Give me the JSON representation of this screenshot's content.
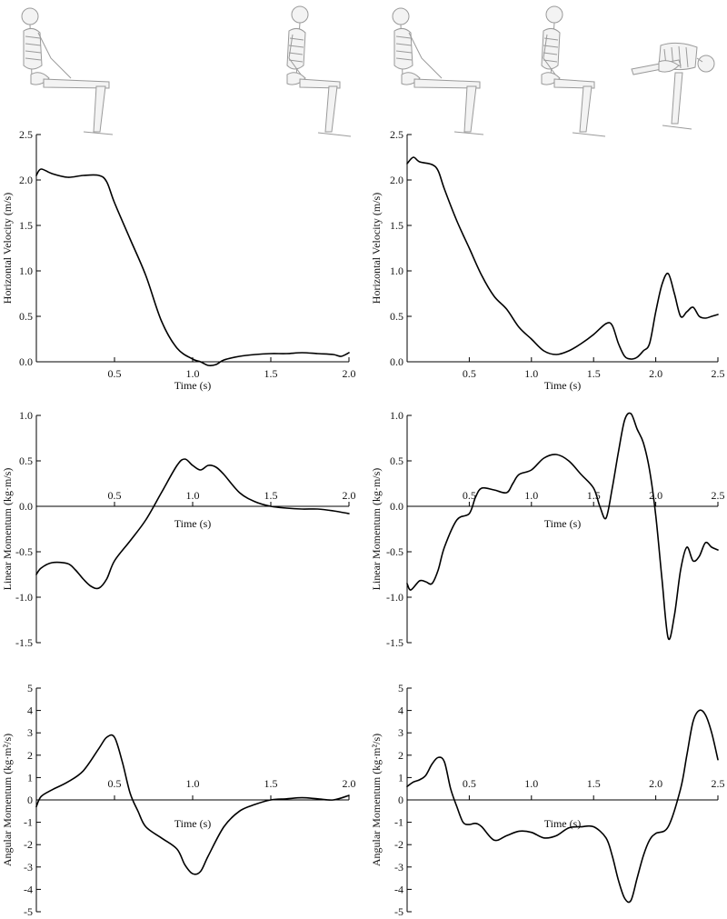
{
  "figure": {
    "skeleton_icons": [
      "skeleton-sitting-icon",
      "skeleton-sitting-icon",
      "skeleton-sitting-icon",
      "skeleton-sitting-icon",
      "skeleton-falling-icon"
    ]
  },
  "chart_data": [
    {
      "type": "line",
      "panel": "left-top",
      "title": "",
      "xlabel": "Time (s)",
      "ylabel": "Horizontal Velocity (m/s)",
      "xlim": [
        0,
        2.0
      ],
      "ylim": [
        0,
        2.5
      ],
      "xticks": [
        0.5,
        1.0,
        1.5,
        2.0
      ],
      "xtick_labels": [
        "0.5",
        "1.0",
        "1.5",
        "2.0"
      ],
      "yticks": [
        0,
        0.5,
        1.0,
        1.5,
        2.0,
        2.5
      ],
      "ytick_labels": [
        "0.0",
        "0.5",
        "1.0",
        "1.5",
        "2.0",
        "2.5"
      ],
      "grid": false,
      "series": [
        {
          "x": [
            0,
            0.03,
            0.1,
            0.2,
            0.3,
            0.4,
            0.45,
            0.5,
            0.6,
            0.7,
            0.8,
            0.9,
            1.0,
            1.05,
            1.1,
            1.15,
            1.2,
            1.3,
            1.4,
            1.5,
            1.6,
            1.7,
            1.8,
            1.9,
            1.95,
            2.0
          ],
          "y": [
            2.05,
            2.12,
            2.07,
            2.03,
            2.05,
            2.05,
            1.98,
            1.75,
            1.35,
            0.95,
            0.45,
            0.15,
            0.03,
            0.0,
            -0.04,
            -0.03,
            0.02,
            0.06,
            0.08,
            0.09,
            0.09,
            0.1,
            0.09,
            0.08,
            0.06,
            0.1
          ]
        }
      ]
    },
    {
      "type": "line",
      "panel": "right-top",
      "title": "",
      "xlabel": "Time (s)",
      "ylabel": "Horizontal Velocity (m/s)",
      "xlim": [
        0,
        2.5
      ],
      "ylim": [
        0,
        2.5
      ],
      "xticks": [
        0.5,
        1.0,
        1.5,
        2.0,
        2.5
      ],
      "xtick_labels": [
        "0.5",
        "1.0",
        "1.5",
        "2.0",
        "2.5"
      ],
      "yticks": [
        0,
        0.5,
        1.0,
        1.5,
        2.0,
        2.5
      ],
      "ytick_labels": [
        "0.0",
        "0.5",
        "1.0",
        "1.5",
        "2.0",
        "2.5"
      ],
      "grid": false,
      "series": [
        {
          "x": [
            0,
            0.05,
            0.1,
            0.2,
            0.25,
            0.3,
            0.4,
            0.5,
            0.6,
            0.7,
            0.8,
            0.9,
            1.0,
            1.1,
            1.2,
            1.3,
            1.4,
            1.5,
            1.6,
            1.65,
            1.7,
            1.75,
            1.8,
            1.85,
            1.9,
            1.95,
            2.0,
            2.05,
            2.1,
            2.15,
            2.2,
            2.25,
            2.3,
            2.35,
            2.4,
            2.45,
            2.5
          ],
          "y": [
            2.18,
            2.25,
            2.2,
            2.17,
            2.1,
            1.9,
            1.55,
            1.25,
            0.95,
            0.72,
            0.58,
            0.38,
            0.25,
            0.12,
            0.08,
            0.12,
            0.2,
            0.3,
            0.42,
            0.4,
            0.2,
            0.06,
            0.03,
            0.05,
            0.12,
            0.2,
            0.55,
            0.85,
            0.97,
            0.75,
            0.5,
            0.55,
            0.6,
            0.5,
            0.48,
            0.5,
            0.52
          ]
        }
      ]
    },
    {
      "type": "line",
      "panel": "left-middle",
      "title": "",
      "xlabel": "Time (s)",
      "ylabel": "Linear Momentum (kg·m/s)",
      "xlim": [
        0,
        2.0
      ],
      "ylim": [
        -1.5,
        1.0
      ],
      "xticks": [
        0.5,
        1.0,
        1.5,
        2.0
      ],
      "xtick_labels": [
        "0.5",
        "1.0",
        "1.5",
        "2.0"
      ],
      "yticks": [
        -1.5,
        -1.0,
        -0.5,
        0,
        0.5,
        1.0
      ],
      "ytick_labels": [
        "-1.5",
        "-1.0",
        "-0.5",
        "0.0",
        "0.5",
        "1.0"
      ],
      "grid": false,
      "series": [
        {
          "x": [
            0,
            0.03,
            0.1,
            0.2,
            0.25,
            0.3,
            0.35,
            0.4,
            0.45,
            0.5,
            0.6,
            0.7,
            0.8,
            0.9,
            0.95,
            1.0,
            1.05,
            1.1,
            1.15,
            1.2,
            1.3,
            1.4,
            1.5,
            1.6,
            1.7,
            1.8,
            1.9,
            2.0
          ],
          "y": [
            -0.75,
            -0.68,
            -0.62,
            -0.63,
            -0.7,
            -0.8,
            -0.88,
            -0.9,
            -0.8,
            -0.6,
            -0.38,
            -0.15,
            0.15,
            0.45,
            0.52,
            0.45,
            0.4,
            0.45,
            0.43,
            0.35,
            0.15,
            0.05,
            0.0,
            -0.02,
            -0.03,
            -0.03,
            -0.05,
            -0.08
          ]
        }
      ]
    },
    {
      "type": "line",
      "panel": "right-middle",
      "title": "",
      "xlabel": "Time (s)",
      "ylabel": "Linear Momentum (kg·m/s)",
      "xlim": [
        0,
        2.5
      ],
      "ylim": [
        -1.5,
        1.0
      ],
      "xticks": [
        0.5,
        1.0,
        1.5,
        2.0,
        2.5
      ],
      "xtick_labels": [
        "0.5",
        "1.0",
        "1.5",
        "2.0",
        "2.5"
      ],
      "yticks": [
        -1.5,
        -1.0,
        -0.5,
        0,
        0.5,
        1.0
      ],
      "ytick_labels": [
        "-1.5",
        "-1.0",
        "-0.5",
        "0.0",
        "0.5",
        "1.0"
      ],
      "grid": false,
      "series": [
        {
          "x": [
            0,
            0.03,
            0.1,
            0.15,
            0.2,
            0.25,
            0.3,
            0.4,
            0.5,
            0.55,
            0.6,
            0.7,
            0.8,
            0.85,
            0.9,
            1.0,
            1.1,
            1.2,
            1.3,
            1.4,
            1.5,
            1.55,
            1.6,
            1.65,
            1.7,
            1.75,
            1.8,
            1.85,
            1.9,
            1.95,
            2.0,
            2.05,
            2.1,
            2.15,
            2.2,
            2.25,
            2.3,
            2.35,
            2.4,
            2.45,
            2.5
          ],
          "y": [
            -0.85,
            -0.92,
            -0.82,
            -0.83,
            -0.85,
            -0.7,
            -0.45,
            -0.15,
            -0.08,
            0.1,
            0.2,
            0.18,
            0.15,
            0.25,
            0.35,
            0.4,
            0.53,
            0.57,
            0.5,
            0.35,
            0.2,
            0.0,
            -0.13,
            0.2,
            0.6,
            0.95,
            1.02,
            0.85,
            0.7,
            0.4,
            -0.1,
            -0.8,
            -1.45,
            -1.2,
            -0.7,
            -0.45,
            -0.6,
            -0.55,
            -0.4,
            -0.45,
            -0.48
          ]
        }
      ]
    },
    {
      "type": "line",
      "panel": "left-bottom",
      "title": "",
      "xlabel": "Time (s)",
      "ylabel": "Angular Momentum (kg·m²/s)",
      "xlim": [
        0,
        2.0
      ],
      "ylim": [
        -5,
        5
      ],
      "xticks": [
        0.5,
        1.0,
        1.5,
        2.0
      ],
      "xtick_labels": [
        "0.5",
        "1.0",
        "1.5",
        "2.0"
      ],
      "yticks": [
        -5,
        -4,
        -3,
        -2,
        -1,
        0,
        1,
        2,
        3,
        4,
        5
      ],
      "ytick_labels": [
        "-5",
        "-4",
        "-3",
        "-2",
        "-1",
        "0",
        "1",
        "2",
        "3",
        "4",
        "5"
      ],
      "grid": false,
      "series": [
        {
          "x": [
            0,
            0.03,
            0.1,
            0.2,
            0.3,
            0.4,
            0.45,
            0.5,
            0.55,
            0.6,
            0.65,
            0.7,
            0.8,
            0.9,
            0.95,
            1.0,
            1.05,
            1.1,
            1.2,
            1.3,
            1.4,
            1.5,
            1.6,
            1.7,
            1.8,
            1.9,
            2.0
          ],
          "y": [
            -0.3,
            0.15,
            0.45,
            0.8,
            1.3,
            2.3,
            2.8,
            2.8,
            1.7,
            0.3,
            -0.5,
            -1.2,
            -1.7,
            -2.2,
            -2.9,
            -3.3,
            -3.2,
            -2.5,
            -1.2,
            -0.5,
            -0.2,
            0.0,
            0.05,
            0.1,
            0.05,
            0.0,
            0.2
          ]
        }
      ]
    },
    {
      "type": "line",
      "panel": "right-bottom",
      "title": "",
      "xlabel": "Time (s)",
      "ylabel": "Angular Momentum (kg·m²/s)",
      "xlim": [
        0,
        2.5
      ],
      "ylim": [
        -5,
        5
      ],
      "xticks": [
        0.5,
        1.0,
        1.5,
        2.0,
        2.5
      ],
      "xtick_labels": [
        "0.5",
        "1.0",
        "1.5",
        "2.0",
        "2.5"
      ],
      "yticks": [
        -5,
        -4,
        -3,
        -2,
        -1,
        0,
        1,
        2,
        3,
        4,
        5
      ],
      "ytick_labels": [
        "-5",
        "-4",
        "-3",
        "-2",
        "-1",
        "0",
        "1",
        "2",
        "3",
        "4",
        "5"
      ],
      "grid": false,
      "series": [
        {
          "x": [
            0,
            0.05,
            0.1,
            0.15,
            0.2,
            0.25,
            0.3,
            0.35,
            0.4,
            0.45,
            0.5,
            0.55,
            0.6,
            0.7,
            0.8,
            0.9,
            1.0,
            1.1,
            1.2,
            1.3,
            1.4,
            1.5,
            1.6,
            1.65,
            1.7,
            1.75,
            1.8,
            1.85,
            1.9,
            1.95,
            2.0,
            2.1,
            2.2,
            2.25,
            2.3,
            2.35,
            2.4,
            2.45,
            2.5
          ],
          "y": [
            0.6,
            0.8,
            0.9,
            1.1,
            1.6,
            1.9,
            1.7,
            0.5,
            -0.3,
            -1.0,
            -1.1,
            -1.05,
            -1.2,
            -1.8,
            -1.6,
            -1.4,
            -1.45,
            -1.7,
            -1.6,
            -1.25,
            -1.2,
            -1.2,
            -1.7,
            -2.5,
            -3.6,
            -4.4,
            -4.5,
            -3.5,
            -2.5,
            -1.8,
            -1.5,
            -1.2,
            0.5,
            2.0,
            3.5,
            4.0,
            3.8,
            3.0,
            1.8
          ]
        }
      ]
    }
  ]
}
